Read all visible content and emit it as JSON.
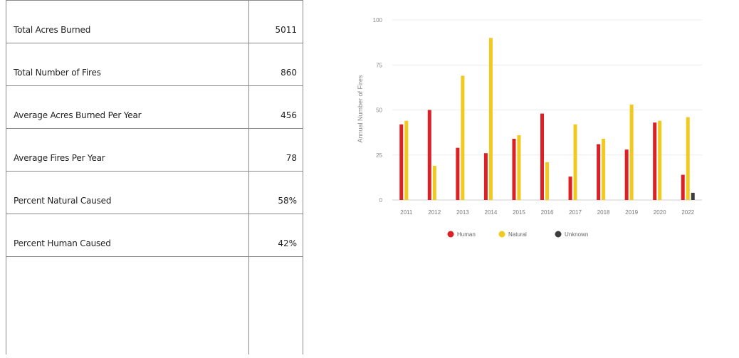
{
  "stats": [
    {
      "label": "Total Acres Burned",
      "value": "5011"
    },
    {
      "label": "Total Number of Fires",
      "value": "860"
    },
    {
      "label": "Average Acres Burned Per Year",
      "value": "456"
    },
    {
      "label": "Average Fires Per Year",
      "value": "78"
    },
    {
      "label": "Percent Natural Caused",
      "value": "58%"
    },
    {
      "label": "Percent Human Caused",
      "value": "42%"
    }
  ],
  "chart_data": {
    "type": "bar",
    "title": "",
    "xlabel": "",
    "ylabel": "Annual Number of Fires",
    "ylim": [
      0,
      100
    ],
    "yticks": [
      0,
      25,
      50,
      75,
      100
    ],
    "grid": true,
    "legend_position": "bottom",
    "categories": [
      "2011",
      "2012",
      "2013",
      "2014",
      "2015",
      "2016",
      "2017",
      "2018",
      "2019",
      "2020",
      "2022"
    ],
    "series": [
      {
        "name": "Human",
        "color": "#dd1f26",
        "values": [
          42,
          50,
          29,
          26,
          34,
          48,
          13,
          31,
          28,
          43,
          14
        ]
      },
      {
        "name": "Natural",
        "color": "#f2c91f",
        "values": [
          44,
          19,
          69,
          90,
          36,
          21,
          42,
          34,
          53,
          44,
          46
        ]
      },
      {
        "name": "Unknown",
        "color": "#3d3d3d",
        "values": [
          0,
          0,
          0,
          0,
          0,
          0,
          0,
          0,
          0,
          0,
          4
        ]
      }
    ]
  }
}
